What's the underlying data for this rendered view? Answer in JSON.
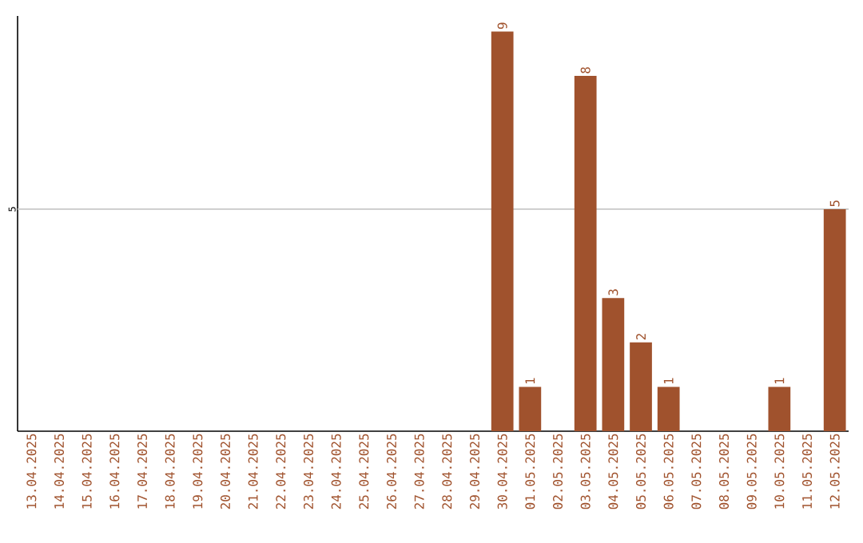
{
  "chart_data": {
    "type": "bar",
    "categories": [
      "13.04.2025",
      "14.04.2025",
      "15.04.2025",
      "16.04.2025",
      "17.04.2025",
      "18.04.2025",
      "19.04.2025",
      "20.04.2025",
      "21.04.2025",
      "22.04.2025",
      "23.04.2025",
      "24.04.2025",
      "25.04.2025",
      "26.04.2025",
      "27.04.2025",
      "28.04.2025",
      "29.04.2025",
      "30.04.2025",
      "01.05.2025",
      "02.05.2025",
      "03.05.2025",
      "04.05.2025",
      "05.05.2025",
      "06.05.2025",
      "07.05.2025",
      "08.05.2025",
      "09.05.2025",
      "10.05.2025",
      "11.05.2025",
      "12.05.2025"
    ],
    "values": [
      null,
      null,
      null,
      null,
      null,
      null,
      null,
      null,
      null,
      null,
      null,
      null,
      null,
      null,
      null,
      null,
      null,
      9,
      1,
      null,
      8,
      3,
      2,
      1,
      null,
      null,
      null,
      1,
      null,
      5
    ],
    "data_labels": true,
    "color": "#a0522d",
    "ylim": [
      0,
      9.35
    ],
    "ref_lines": [
      {
        "axis": "y",
        "value": 5,
        "label": "5",
        "color": "#c8c8c8"
      }
    ]
  }
}
